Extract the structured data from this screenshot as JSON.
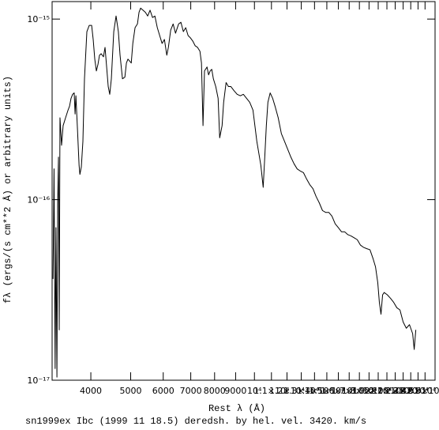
{
  "chart_data": {
    "type": "line",
    "title": "sn1999ex Ibc (1999 11 18.5) deredsh. by hel. vel.  3420. km/s",
    "x_label": "Rest λ (Å)",
    "y_label": "fλ (ergs/(s cm**2 Å) or arbitrary units)",
    "xscale": "log",
    "yscale": "log",
    "color": "#000000",
    "xlim": [
      3220,
      27500
    ],
    "ylim": [
      1e-17,
      1.25e-15
    ],
    "xticks": [
      4000,
      5000,
      6000,
      7000,
      8000,
      9000,
      {
        "value": 10000,
        "label": "10⁴"
      },
      {
        "value": 11000,
        "label": "1.1×10⁴"
      },
      {
        "value": 12000,
        "label": "1.2×10⁴"
      },
      {
        "value": 13000,
        "label": "1.3×10⁴"
      },
      {
        "value": 14000,
        "label": "1.4×10⁴"
      },
      {
        "value": 15000,
        "label": "1.5×10⁴"
      },
      {
        "value": 16000,
        "label": "1.6×10⁴"
      },
      {
        "value": 17000,
        "label": "1.7×10⁴"
      },
      {
        "value": 18000,
        "label": "1.8×10⁴"
      },
      {
        "value": 19000,
        "label": "1.9×10⁴"
      },
      {
        "value": 20000,
        "label": "2×10⁴"
      },
      {
        "value": 21000,
        "label": "2.1×10⁴"
      },
      {
        "value": 22000,
        "label": "2.2×10⁴"
      },
      {
        "value": 23000,
        "label": "2.3×10⁴"
      },
      {
        "value": 24000,
        "label": "2.4×10⁴"
      },
      {
        "value": 25000,
        "label": "2.5×10⁴"
      },
      {
        "value": 26000,
        "label": "2.6×10⁴"
      }
    ],
    "yticks": [
      {
        "value": 1e-17,
        "label": "10⁻¹⁷"
      },
      {
        "value": 1e-16,
        "label": "10⁻¹⁶"
      },
      {
        "value": 1e-15,
        "label": "10⁻¹⁵"
      }
    ],
    "x": [
      3236,
      3255,
      3275,
      3290,
      3308,
      3322,
      3337,
      3351,
      3365,
      3395,
      3425,
      3472,
      3520,
      3550,
      3580,
      3612,
      3644,
      3662,
      3679,
      3712,
      3745,
      3762,
      3793,
      3826,
      3860,
      3912,
      3965,
      4018,
      4053,
      4089,
      4126,
      4162,
      4199,
      4237,
      4293,
      4331,
      4370,
      4409,
      4447,
      4487,
      4548,
      4607,
      4667,
      4711,
      4775,
      4840,
      4882,
      4924,
      5016,
      5060,
      5124,
      5193,
      5239,
      5286,
      5357,
      5430,
      5499,
      5573,
      5651,
      5726,
      5804,
      5882,
      5961,
      6040,
      6121,
      6176,
      6256,
      6342,
      6427,
      6540,
      6625,
      6716,
      6805,
      6897,
      6990,
      7081,
      7177,
      7272,
      7370,
      7433,
      7497,
      7560,
      7668,
      7735,
      7804,
      7874,
      7945,
      8052,
      8159,
      8231,
      8343,
      8416,
      8532,
      8646,
      8762,
      8914,
      9077,
      9242,
      9398,
      9570,
      9740,
      9918,
      10136,
      10365,
      10502,
      10595,
      10689,
      10783,
      10922,
      11075,
      11224,
      11424,
      11628,
      11838,
      12050,
      12264,
      12483,
      12704,
      12930,
      13161,
      13395,
      13635,
      13878,
      14128,
      14378,
      14640,
      14900,
      15168,
      15437,
      15715,
      15995,
      16282,
      16573,
      16870,
      17170,
      17477,
      17790,
      18108,
      18432,
      18763,
      19098,
      19440,
      19700,
      19955,
      20130,
      20317,
      20500,
      20680,
      21050,
      21430,
      21809,
      22200,
      22593,
      23000,
      23410,
      23830,
      24257,
      24470,
      24690
    ],
    "values": [
      3.64e-17,
      1.48e-16,
      1.16e-17,
      7e-17,
      1.04e-17,
      9.4e-17,
      1.72e-16,
      1.9e-17,
      2.84e-16,
      2e-16,
      2.57e-16,
      2.84e-16,
      3.13e-16,
      3.29e-16,
      3.64e-16,
      3.83e-16,
      3.9e-16,
      2.98e-16,
      3.76e-16,
      2.44e-16,
      1.55e-16,
      1.38e-16,
      1.52e-16,
      2.1e-16,
      4.67e-16,
      8.52e-16,
      9.23e-16,
      9.23e-16,
      7.71e-16,
      6e-16,
      5.16e-16,
      5.6e-16,
      6.31e-16,
      6.43e-16,
      6.18e-16,
      6.97e-16,
      5.43e-16,
      4.23e-16,
      3.83e-16,
      4.67e-16,
      8.52e-16,
      1.04e-15,
      8.52e-16,
      6.31e-16,
      4.67e-16,
      4.77e-16,
      5.71e-16,
      6e-16,
      5.71e-16,
      7.33e-16,
      8.96e-16,
      9.4e-16,
      1.09e-15,
      1.15e-15,
      1.12e-15,
      1.09e-15,
      1.04e-15,
      1.12e-15,
      1.02e-15,
      1.04e-15,
      8.96e-16,
      8.1e-16,
      7.33e-16,
      7.71e-16,
      6.31e-16,
      6.97e-16,
      8.69e-16,
      9.4e-16,
      8.35e-16,
      9.4e-16,
      9.6e-16,
      8.52e-16,
      8.96e-16,
      8.1e-16,
      7.86e-16,
      7.55e-16,
      7.11e-16,
      6.97e-16,
      6.63e-16,
      5.71e-16,
      2.57e-16,
      5.16e-16,
      5.43e-16,
      4.91e-16,
      5.16e-16,
      5.27e-16,
      4.67e-16,
      4.23e-16,
      3.64e-16,
      2.2e-16,
      2.57e-16,
      3.46e-16,
      4.45e-16,
      4.23e-16,
      4.23e-16,
      4.02e-16,
      3.83e-16,
      3.76e-16,
      3.83e-16,
      3.64e-16,
      3.46e-16,
      3.13e-16,
      2.1e-16,
      1.55e-16,
      1.17e-16,
      1.72e-16,
      2.57e-16,
      3.46e-16,
      3.9e-16,
      3.64e-16,
      3.29e-16,
      2.84e-16,
      2.32e-16,
      2.1e-16,
      1.9e-16,
      1.72e-16,
      1.58e-16,
      1.48e-16,
      1.44e-16,
      1.41e-16,
      1.3e-16,
      1.21e-16,
      1.15e-16,
      1.04e-16,
      9.6e-17,
      8.7e-17,
      8.5e-17,
      8.5e-17,
      8.1e-17,
      7.35e-17,
      7e-17,
      6.64e-17,
      6.64e-17,
      6.4e-17,
      6.3e-17,
      6.15e-17,
      6e-17,
      5.6e-17,
      5.44e-17,
      5.35e-17,
      5.28e-17,
      4.7e-17,
      4.25e-17,
      3.46e-17,
      2.7e-17,
      2.32e-17,
      2.97e-17,
      3.06e-17,
      2.97e-17,
      2.84e-17,
      2.7e-17,
      2.52e-17,
      2.45e-17,
      2.1e-17,
      1.94e-17,
      2.03e-17,
      1.81e-17,
      1.48e-17,
      1.9e-17
    ]
  }
}
